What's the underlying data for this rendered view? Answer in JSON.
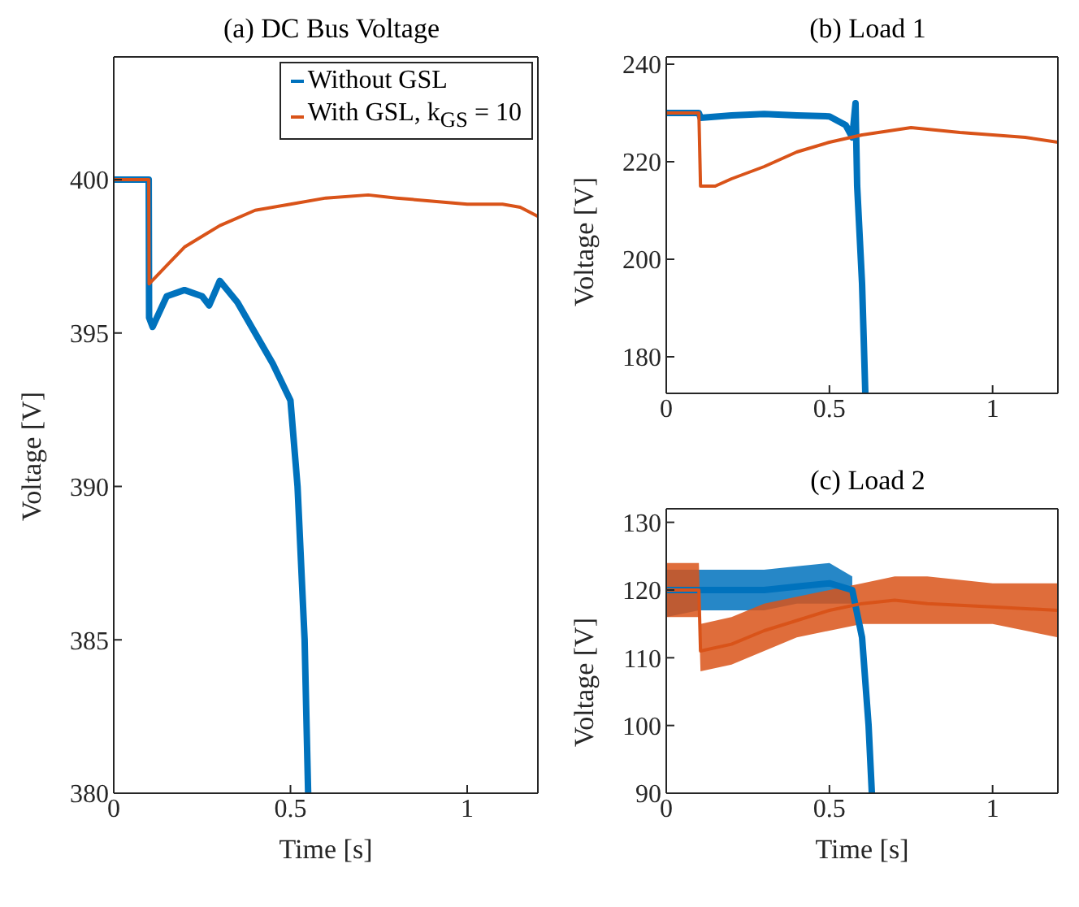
{
  "chart_data": [
    {
      "type": "line",
      "title": "(a) DC Bus Voltage",
      "xlabel": "Time [s]",
      "ylabel": "Voltage [V]",
      "xlim": [
        0,
        1.2
      ],
      "xticks": [
        0,
        0.5,
        1
      ],
      "ylim": [
        380,
        404
      ],
      "yticks": [
        380,
        385,
        390,
        395,
        400
      ],
      "legend": "top right",
      "series": [
        {
          "name": "Without GSL",
          "color": "#0072bd",
          "x": [
            0,
            0.099,
            0.1,
            0.11,
            0.15,
            0.2,
            0.25,
            0.27,
            0.3,
            0.35,
            0.4,
            0.45,
            0.5,
            0.52,
            0.54,
            0.55
          ],
          "values": [
            400,
            400,
            395.5,
            395.2,
            396.2,
            396.4,
            396.2,
            395.9,
            396.7,
            396,
            395,
            394,
            392.8,
            390,
            385,
            380
          ]
        },
        {
          "name": "With GSL, k$_{GS}$ = 10",
          "color": "#d95319",
          "x": [
            0,
            0.099,
            0.1,
            0.15,
            0.2,
            0.3,
            0.4,
            0.5,
            0.6,
            0.72,
            0.8,
            0.9,
            1,
            1.1,
            1.15,
            1.2
          ],
          "values": [
            400,
            400,
            396.6,
            397.2,
            397.8,
            398.5,
            399,
            399.2,
            399.4,
            399.5,
            399.4,
            399.3,
            399.2,
            399.2,
            399.1,
            398.8
          ]
        }
      ]
    },
    {
      "type": "line",
      "title": "(b) Load 1",
      "ylabel": "Voltage [V]",
      "xlim": [
        0,
        1.2
      ],
      "xticks": [
        0,
        0.5,
        1
      ],
      "ylim": [
        172.5,
        241.5
      ],
      "yticks": [
        180,
        200,
        220,
        240
      ],
      "series": [
        {
          "color": "#0072bd",
          "x": [
            0,
            0.1,
            0.105,
            0.2,
            0.3,
            0.4,
            0.5,
            0.55,
            0.57,
            0.58,
            0.585,
            0.6,
            0.61
          ],
          "values": [
            230,
            230,
            229,
            229.5,
            229.8,
            229.5,
            229.3,
            227.5,
            225,
            232,
            215,
            195,
            172.5
          ]
        },
        {
          "color": "#d95319",
          "x": [
            0,
            0.1,
            0.105,
            0.15,
            0.2,
            0.3,
            0.4,
            0.5,
            0.6,
            0.7,
            0.75,
            0.9,
            1,
            1.1,
            1.2
          ],
          "values": [
            230,
            230,
            215,
            215,
            216.5,
            219,
            222,
            224,
            225.5,
            226.5,
            227,
            226,
            225.5,
            225,
            224
          ]
        }
      ]
    },
    {
      "type": "line",
      "title": "(c) Load 2",
      "xlabel": "Time [s]",
      "ylabel": "Voltage [V]",
      "xlim": [
        0,
        1.2
      ],
      "xticks": [
        0,
        0.5,
        1
      ],
      "ylim": [
        90,
        132
      ],
      "yticks": [
        90,
        100,
        110,
        120,
        130
      ],
      "series": [
        {
          "color": "#0072bd",
          "x": [
            0,
            0.1,
            0.2,
            0.3,
            0.4,
            0.5,
            0.57,
            0.6,
            0.62,
            0.63
          ],
          "values": [
            120,
            120,
            120,
            120,
            120.5,
            121,
            120,
            113,
            100,
            90
          ],
          "lower": [
            116,
            117,
            117,
            117,
            118,
            118,
            118,
            null,
            null,
            null
          ],
          "upper": [
            123,
            123,
            123,
            123,
            123.5,
            124,
            122,
            null,
            null,
            null
          ]
        },
        {
          "color": "#d95319",
          "x": [
            0,
            0.1,
            0.105,
            0.2,
            0.3,
            0.4,
            0.5,
            0.6,
            0.7,
            0.8,
            1,
            1.2
          ],
          "values": [
            120,
            120,
            111,
            112,
            114,
            115.5,
            117,
            118,
            118.5,
            118,
            117.5,
            117
          ],
          "lower": [
            116,
            116,
            108,
            109,
            111,
            113,
            114,
            115,
            115,
            115,
            115,
            113
          ],
          "upper": [
            124,
            124,
            115,
            116,
            118,
            119,
            120,
            121,
            122,
            122,
            121,
            121
          ]
        }
      ]
    }
  ]
}
